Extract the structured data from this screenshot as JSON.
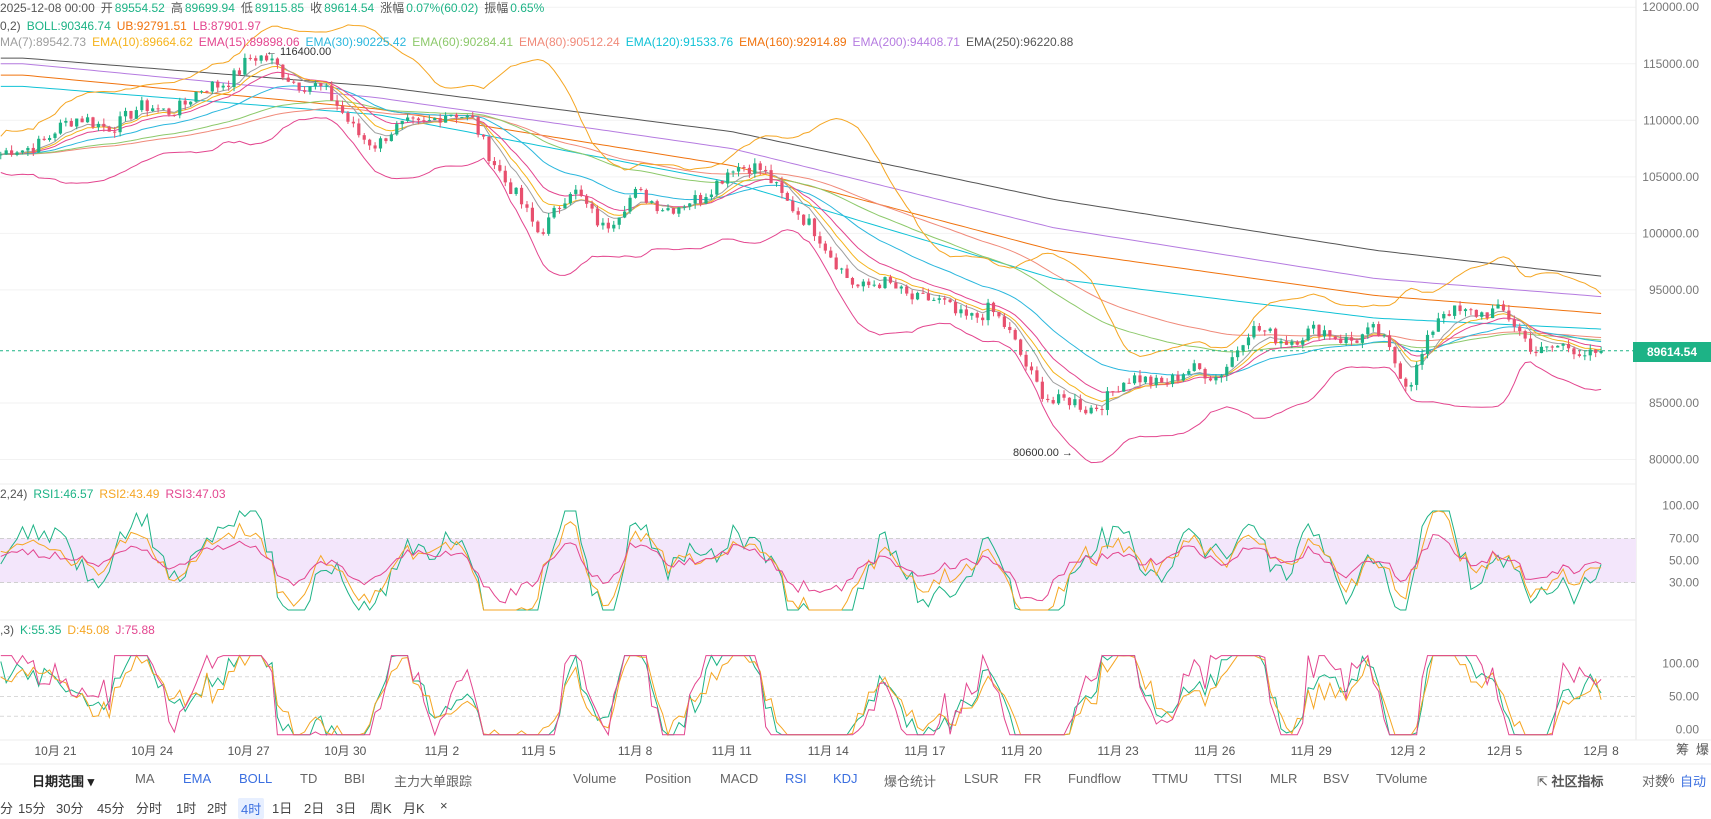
{
  "ohlc": {
    "date": "2025-12-08 00:00",
    "open_label": "开",
    "open": "89554.52",
    "high_label": "高",
    "high": "89699.94",
    "low_label": "低",
    "low": "89115.85",
    "close_label": "收",
    "close": "89614.54",
    "change_label": "涨幅",
    "change": "0.07%(60.02)",
    "amp_label": "振幅",
    "amp": "0.65%"
  },
  "boll_legend": {
    "prefix": "0,2)",
    "boll": "BOLL:90346.74",
    "ub": "UB:92791.51",
    "lb": "LB:87901.97"
  },
  "ema_legend": [
    {
      "text": "MA(7):89542.73",
      "color": "#9e9e9e"
    },
    {
      "text": "EMA(10):89664.62",
      "color": "#f5b31b"
    },
    {
      "text": "EMA(15):89898.06",
      "color": "#e3468f"
    },
    {
      "text": "EMA(30):90225.42",
      "color": "#2bb7dd"
    },
    {
      "text": "EMA(60):90284.41",
      "color": "#8dc96b"
    },
    {
      "text": "EMA(80):90512.24",
      "color": "#f08a7a"
    },
    {
      "text": "EMA(120):91533.76",
      "color": "#10c2d6"
    },
    {
      "text": "EMA(160):92914.89",
      "color": "#f0730e"
    },
    {
      "text": "EMA(200):94408.71",
      "color": "#b57be0"
    },
    {
      "text": "EMA(250):96220.88",
      "color": "#555555"
    }
  ],
  "rsi_legend": {
    "prefix": "2,24)",
    "rsi1": "RSI1:46.57",
    "rsi2": "RSI2:43.49",
    "rsi3": "RSI3:47.03"
  },
  "kdj_legend": {
    "prefix": ",3)",
    "k": "K:55.35",
    "d": "D:45.08",
    "j": "J:75.88"
  },
  "annotations": {
    "high_mark": "← 116400.00",
    "low_mark": "80600.00 →",
    "last_price": "89614.54"
  },
  "right_corner_labels": {
    "chips": "筹",
    "liq": "爆"
  },
  "toolbar": {
    "range_label": "日期范围",
    "indicators_left": [
      "MA",
      "EMA",
      "BOLL",
      "TD",
      "BBI",
      "主力大单跟踪"
    ],
    "indicators_right": [
      "Volume",
      "Position",
      "MACD",
      "RSI",
      "KDJ",
      "爆仓统计",
      "LSUR",
      "FR",
      "Fundflow",
      "TTMU",
      "TTSI",
      "MLR",
      "BSV",
      "TVolume"
    ],
    "community": "社区指标",
    "log": "对数",
    "percent": "%",
    "auto": "自动"
  },
  "periods": {
    "items": [
      "分",
      "15分",
      "30分",
      "45分",
      "分时",
      "1时",
      "2时",
      "4时",
      "1日",
      "2日",
      "3日",
      "周K",
      "月K",
      "×"
    ],
    "active": "4时"
  },
  "colors": {
    "up": "#1db386",
    "down": "#e8506e",
    "rsi_band": "#f3e6fb",
    "accent": "#3b6fe0"
  },
  "chart_data": [
    {
      "type": "candlestick",
      "title": "",
      "x_ticks": [
        "10月 21",
        "10月 24",
        "10月 27",
        "10月 30",
        "11月 2",
        "11月 5",
        "11月 8",
        "11月 11",
        "11月 14",
        "11月 17",
        "11月 20",
        "11月 23",
        "11月 26",
        "11月 29",
        "12月 2",
        "12月 5",
        "12月 8"
      ],
      "y_ticks": [
        "120000.00",
        "115000.00",
        "110000.00",
        "105000.00",
        "100000.00",
        "95000.00",
        "85000.00",
        "80000.00"
      ],
      "ylim": [
        79500,
        120800
      ],
      "close_path": [
        {
          "date": "2025-10-20",
          "v": 107000
        },
        {
          "date": "2025-10-21",
          "v": 109500
        },
        {
          "date": "2025-10-23",
          "v": 110000
        },
        {
          "date": "2025-10-24",
          "v": 111000
        },
        {
          "date": "2025-10-25",
          "v": 111500
        },
        {
          "date": "2025-10-26",
          "v": 113000
        },
        {
          "date": "2025-10-27",
          "v": 115500
        },
        {
          "date": "2025-10-28",
          "v": 114500
        },
        {
          "date": "2025-10-29",
          "v": 113000
        },
        {
          "date": "2025-10-30",
          "v": 110500
        },
        {
          "date": "2025-10-31",
          "v": 107500
        },
        {
          "date": "2025-11-01",
          "v": 110000
        },
        {
          "date": "2025-11-03",
          "v": 110300
        },
        {
          "date": "2025-11-04",
          "v": 104000
        },
        {
          "date": "2025-11-05",
          "v": 100500
        },
        {
          "date": "2025-11-06",
          "v": 103500
        },
        {
          "date": "2025-11-07",
          "v": 101000
        },
        {
          "date": "2025-11-08",
          "v": 103000
        },
        {
          "date": "2025-11-10",
          "v": 102500
        },
        {
          "date": "2025-11-11",
          "v": 106500
        },
        {
          "date": "2025-11-12",
          "v": 105000
        },
        {
          "date": "2025-11-13",
          "v": 102500
        },
        {
          "date": "2025-11-14",
          "v": 98000
        },
        {
          "date": "2025-11-15",
          "v": 95500
        },
        {
          "date": "2025-11-17",
          "v": 94500
        },
        {
          "date": "2025-11-18",
          "v": 92500
        },
        {
          "date": "2025-11-19",
          "v": 93500
        },
        {
          "date": "2025-11-20",
          "v": 89000
        },
        {
          "date": "2025-11-21",
          "v": 85000
        },
        {
          "date": "2025-11-22",
          "v": 84500
        },
        {
          "date": "2025-11-23",
          "v": 86500
        },
        {
          "date": "2025-11-25",
          "v": 87500
        },
        {
          "date": "2025-11-26",
          "v": 87500
        },
        {
          "date": "2025-11-27",
          "v": 91000
        },
        {
          "date": "2025-11-29",
          "v": 91000
        },
        {
          "date": "2025-12-01",
          "v": 91000
        },
        {
          "date": "2025-12-02",
          "v": 87000
        },
        {
          "date": "2025-12-03",
          "v": 92500
        },
        {
          "date": "2025-12-04",
          "v": 93500
        },
        {
          "date": "2025-12-05",
          "v": 92500
        },
        {
          "date": "2025-12-06",
          "v": 90000
        },
        {
          "date": "2025-12-07",
          "v": 89500
        },
        {
          "date": "2025-12-08",
          "v": 89614.54
        }
      ],
      "high": 116400,
      "low": 80600,
      "last": 89614.54,
      "ema250_path": [
        {
          "date": "2025-10-20",
          "v": 115500
        },
        {
          "date": "2025-10-31",
          "v": 113000
        },
        {
          "date": "2025-11-11",
          "v": 109000
        },
        {
          "date": "2025-11-21",
          "v": 103000
        },
        {
          "date": "2025-12-01",
          "v": 98500
        },
        {
          "date": "2025-12-08",
          "v": 96220.88
        }
      ],
      "ema200_path": [
        {
          "date": "2025-10-20",
          "v": 115000
        },
        {
          "date": "2025-10-31",
          "v": 112000
        },
        {
          "date": "2025-11-11",
          "v": 107500
        },
        {
          "date": "2025-11-21",
          "v": 100500
        },
        {
          "date": "2025-12-01",
          "v": 96000
        },
        {
          "date": "2025-12-08",
          "v": 94408.71
        }
      ],
      "ema160_path": [
        {
          "date": "2025-10-20",
          "v": 114000
        },
        {
          "date": "2025-10-31",
          "v": 111000
        },
        {
          "date": "2025-11-11",
          "v": 106000
        },
        {
          "date": "2025-11-21",
          "v": 98500
        },
        {
          "date": "2025-12-01",
          "v": 94500
        },
        {
          "date": "2025-12-08",
          "v": 92914.89
        }
      ],
      "ema120_path": [
        {
          "date": "2025-10-20",
          "v": 113000
        },
        {
          "date": "2025-10-31",
          "v": 110500
        },
        {
          "date": "2025-11-11",
          "v": 104500
        },
        {
          "date": "2025-11-21",
          "v": 96000
        },
        {
          "date": "2025-12-01",
          "v": 92500
        },
        {
          "date": "2025-12-08",
          "v": 91533.76
        }
      ]
    },
    {
      "type": "line",
      "title": "RSI",
      "y_ticks": [
        "100.00",
        "70.00",
        "50.00",
        "30.00"
      ],
      "ylim": [
        0,
        100
      ],
      "band": [
        30,
        70
      ],
      "last": {
        "RSI1": 46.57,
        "RSI2": 43.49,
        "RSI3": 47.03
      }
    },
    {
      "type": "line",
      "title": "KDJ",
      "y_ticks": [
        "100.00",
        "50.00",
        "0.00"
      ],
      "ylim": [
        -10,
        115
      ],
      "last": {
        "K": 55.35,
        "D": 45.08,
        "J": 75.88
      }
    }
  ]
}
